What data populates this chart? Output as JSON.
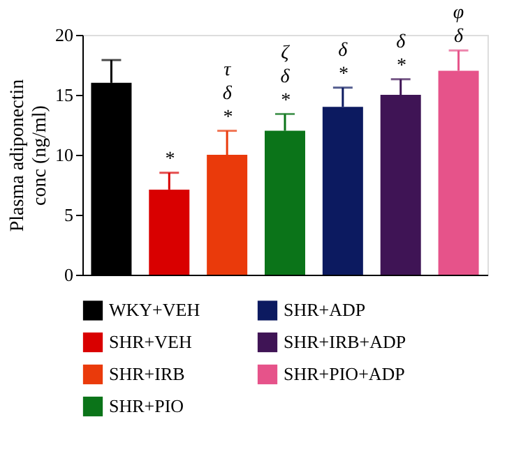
{
  "chart_data": {
    "type": "bar",
    "ylabel": "Plasma adiponectin\nconc (ng/ml)",
    "categories": [
      null,
      null,
      null,
      null,
      null,
      null,
      null
    ],
    "series": [
      {
        "name": "WKY+VEH",
        "color": "#000000",
        "values": [
          16,
          null,
          null,
          null,
          null,
          null,
          null
        ],
        "errors": [
          [
            16,
            17.9
          ],
          null,
          null,
          null,
          null,
          null,
          null
        ],
        "value_labels": [
          null,
          null,
          null,
          null,
          null,
          null,
          null
        ]
      },
      {
        "name": "SHR+VEH",
        "color": "#d90000",
        "values": [
          null,
          7.1,
          null,
          null,
          null,
          null,
          null
        ],
        "errors": [
          null,
          [
            7.1,
            8.5
          ],
          null,
          null,
          null,
          null,
          null
        ],
        "value_labels": [
          null,
          "*",
          null,
          null,
          null,
          null,
          null
        ]
      },
      {
        "name": "SHR+IRB",
        "color": "#ea3a0b",
        "values": [
          null,
          null,
          10,
          null,
          null,
          null,
          null
        ],
        "errors": [
          null,
          null,
          [
            10,
            12
          ],
          null,
          null,
          null,
          null
        ],
        "value_labels": [
          null,
          null,
          "τ\nδ\n*",
          null,
          null,
          null,
          null
        ]
      },
      {
        "name": "SHR+PIO",
        "color": "#0b7419",
        "values": [
          null,
          null,
          null,
          12,
          null,
          null,
          null
        ],
        "errors": [
          null,
          null,
          null,
          [
            12,
            13.4
          ],
          null,
          null,
          null
        ],
        "value_labels": [
          null,
          null,
          null,
          "ζ\nδ\n*",
          null,
          null,
          null
        ]
      },
      {
        "name": "SHR+ADP",
        "color": "#0c1a60",
        "values": [
          null,
          null,
          null,
          null,
          14,
          null,
          null
        ],
        "errors": [
          null,
          null,
          null,
          null,
          [
            14,
            15.6
          ],
          null,
          null
        ],
        "value_labels": [
          null,
          null,
          null,
          null,
          "δ\n*",
          null,
          null
        ]
      },
      {
        "name": "SHR+IRB+ADP",
        "color": "#3f1455",
        "values": [
          null,
          null,
          null,
          null,
          null,
          15,
          null
        ],
        "errors": [
          null,
          null,
          null,
          null,
          null,
          [
            15,
            16.3
          ],
          null
        ],
        "value_labels": [
          null,
          null,
          null,
          null,
          null,
          "δ\n*",
          null
        ]
      },
      {
        "name": "SHR+PIO+ADP",
        "color": "#e6538a",
        "values": [
          null,
          null,
          null,
          null,
          null,
          null,
          17
        ],
        "errors": [
          null,
          null,
          null,
          null,
          null,
          null,
          [
            17,
            18.7
          ]
        ],
        "value_labels": [
          null,
          null,
          null,
          null,
          null,
          null,
          "φ\nδ"
        ]
      }
    ],
    "ylim": [
      0,
      20
    ],
    "yticks": [
      0,
      5,
      10,
      15,
      20
    ],
    "grid": false,
    "legend": "bottom"
  }
}
